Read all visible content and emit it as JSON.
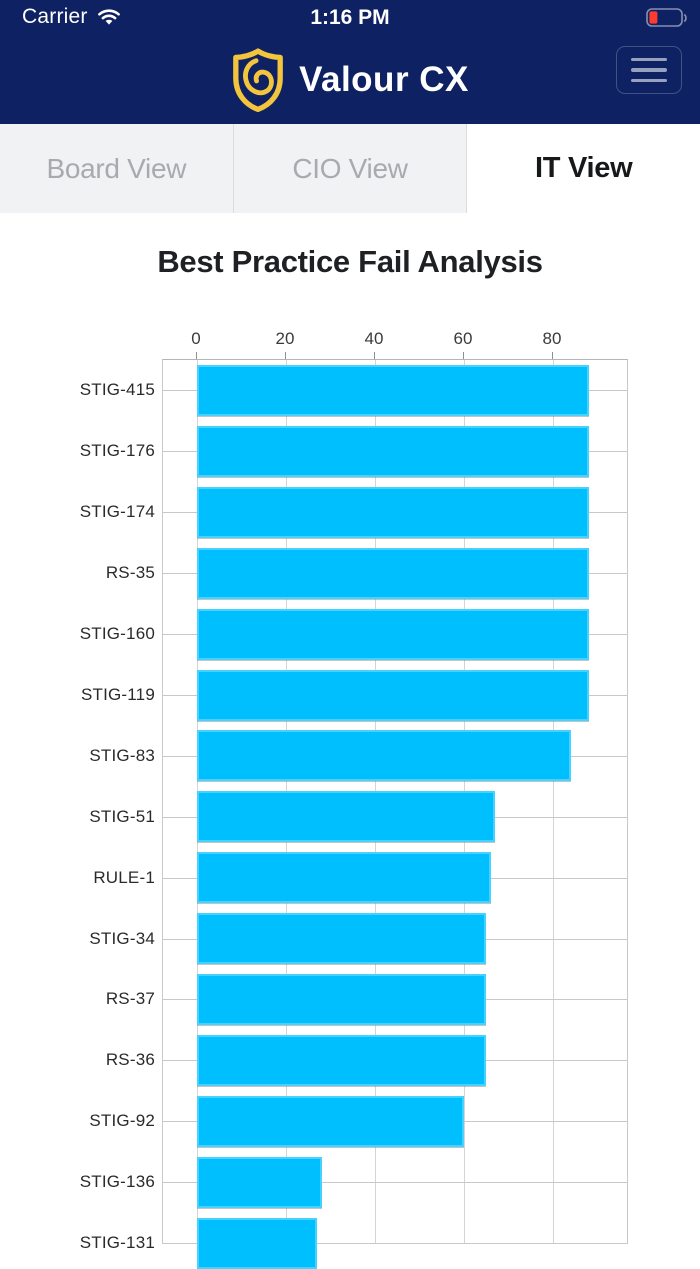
{
  "status_bar": {
    "carrier": "Carrier",
    "time": "1:16 PM",
    "battery_level_percent": 20,
    "battery_color": "#ff3b30"
  },
  "header": {
    "brand": "Valour CX",
    "background_color": "#0e2163",
    "logo_color": "#f3c53d"
  },
  "tabs": {
    "items": [
      {
        "label": "Board View",
        "active": false
      },
      {
        "label": "CIO View",
        "active": false
      },
      {
        "label": "IT View",
        "active": true
      }
    ]
  },
  "page": {
    "title": "Best Practice Fail Analysis"
  },
  "chart_data": {
    "type": "bar",
    "orientation": "horizontal",
    "title": "Best Practice Fail Analysis",
    "categories": [
      "STIG-415",
      "STIG-176",
      "STIG-174",
      "RS-35",
      "STIG-160",
      "STIG-119",
      "STIG-83",
      "STIG-51",
      "RULE-1",
      "STIG-34",
      "RS-37",
      "RS-36",
      "STIG-92",
      "STIG-136",
      "STIG-131"
    ],
    "values": [
      88,
      88,
      88,
      88,
      88,
      88,
      84,
      67,
      66,
      65,
      65,
      65,
      60,
      28,
      27
    ],
    "x_ticks": [
      0,
      20,
      40,
      60,
      80
    ],
    "xlim": [
      0,
      97
    ],
    "xlabel": "",
    "ylabel": "",
    "axis_position": "top",
    "grid": true,
    "bar_color": "#00bfff",
    "gridline_color": "#d4d4d4"
  }
}
